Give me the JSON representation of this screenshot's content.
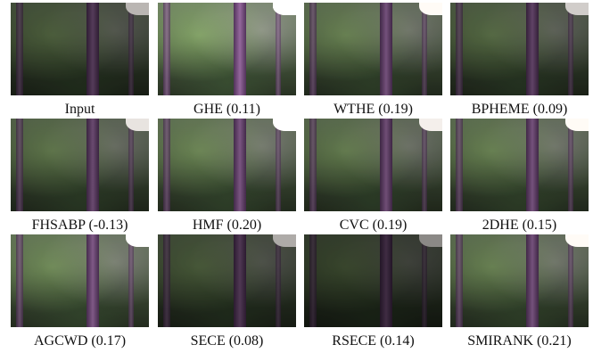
{
  "figure": {
    "panels": [
      {
        "caption": "Input"
      },
      {
        "caption": "GHE (0.11)"
      },
      {
        "caption": "WTHE (0.19)"
      },
      {
        "caption": "BPHEME (0.09)"
      },
      {
        "caption": "FHSABP (-0.13)"
      },
      {
        "caption": "HMF (0.20)"
      },
      {
        "caption": "CVC (0.19)"
      },
      {
        "caption": "2DHE (0.15)"
      },
      {
        "caption": "AGCWD (0.17)"
      },
      {
        "caption": "SECE (0.08)"
      },
      {
        "caption": "RSECE (0.14)"
      },
      {
        "caption": "SMIRANK (0.21)"
      }
    ]
  }
}
